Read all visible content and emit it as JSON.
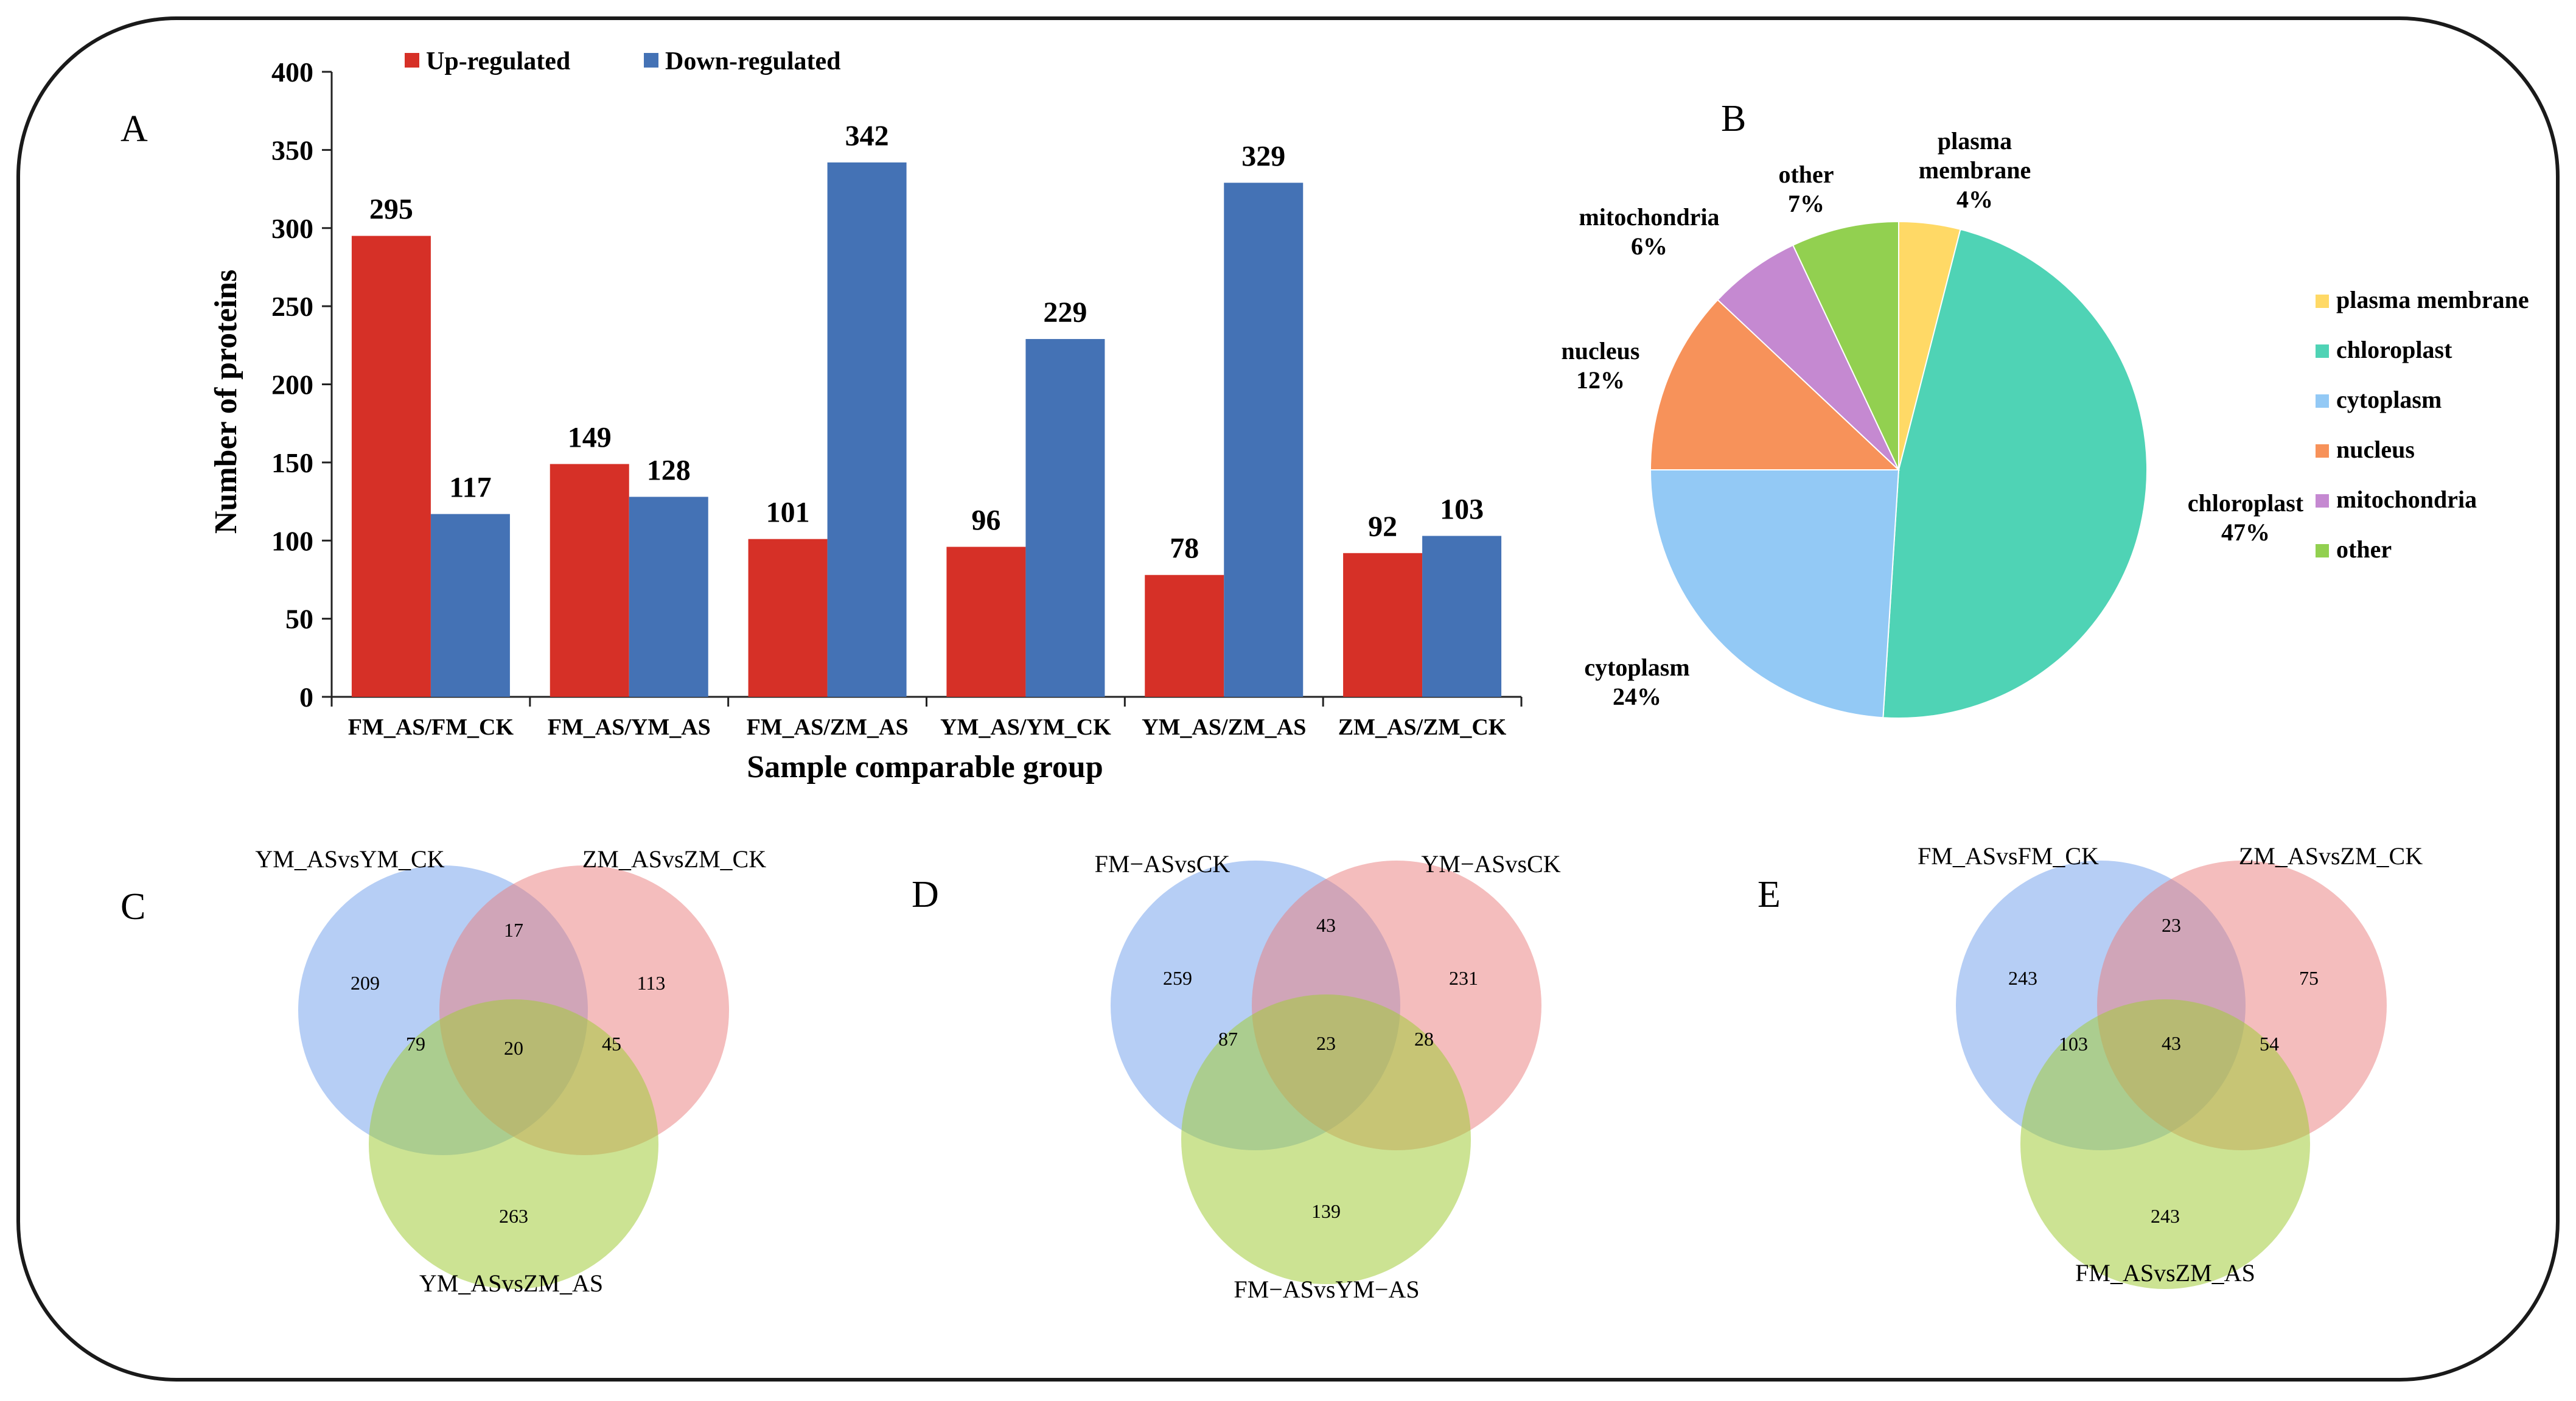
{
  "figure": {
    "panel_labels": {
      "a": "A",
      "b": "B",
      "c": "C",
      "d": "D",
      "e": "E"
    }
  },
  "chart_data": [
    {
      "id": "A",
      "type": "bar",
      "title": "",
      "xlabel": "Sample comparable group",
      "ylabel": "Number of proteins",
      "ylim": [
        0,
        400
      ],
      "yticks": [
        0,
        50,
        100,
        150,
        200,
        250,
        300,
        350,
        400
      ],
      "categories": [
        "FM_AS/FM_CK",
        "FM_AS/YM_AS",
        "FM_AS/ZM_AS",
        "YM_AS/YM_CK",
        "YM_AS/ZM_AS",
        "ZM_AS/ZM_CK"
      ],
      "series": [
        {
          "name": "Up-regulated",
          "color": "#d63027",
          "values": [
            295,
            149,
            101,
            96,
            78,
            92
          ]
        },
        {
          "name": "Down-regulated",
          "color": "#4472b5",
          "values": [
            117,
            128,
            342,
            229,
            329,
            103
          ]
        }
      ],
      "legend_position": "top"
    },
    {
      "id": "B",
      "type": "pie",
      "slices": [
        {
          "name": "plasma membrane",
          "label_lines": [
            "plasma",
            "membrane"
          ],
          "value": 4,
          "pct": "4%",
          "color": "#ffd966"
        },
        {
          "name": "chloroplast",
          "label_lines": [
            "chloroplast"
          ],
          "value": 47,
          "pct": "47%",
          "color": "#4fd3b5"
        },
        {
          "name": "cytoplasm",
          "label_lines": [
            "cytoplasm"
          ],
          "value": 24,
          "pct": "24%",
          "color": "#93c9f5"
        },
        {
          "name": "nucleus",
          "label_lines": [
            "nucleus"
          ],
          "value": 12,
          "pct": "12%",
          "color": "#f7925a"
        },
        {
          "name": "mitochondria",
          "label_lines": [
            "mitochondria"
          ],
          "value": 6,
          "pct": "6%",
          "color": "#c589d1"
        },
        {
          "name": "other",
          "label_lines": [
            "other"
          ],
          "value": 7,
          "pct": "7%",
          "color": "#92d050"
        }
      ],
      "legend": [
        "plasma membrane",
        "chloroplast",
        "cytoplasm",
        "nucleus",
        "mitochondria",
        "other"
      ],
      "legend_position": "right"
    },
    {
      "id": "C",
      "type": "venn",
      "sets": [
        "YM_ASvsYM_CK",
        "ZM_ASvsZM_CK",
        "YM_ASvsZM_AS"
      ],
      "regions": {
        "a_only": 209,
        "b_only": 113,
        "c_only": 263,
        "ab": 17,
        "ac": 79,
        "bc": 45,
        "abc": 20
      }
    },
    {
      "id": "D",
      "type": "venn",
      "sets": [
        "FM−ASvsCK",
        "YM−ASvsCK",
        "FM−ASvsYM−AS"
      ],
      "regions": {
        "a_only": 259,
        "b_only": 231,
        "c_only": 139,
        "ab": 43,
        "ac": 87,
        "bc": 28,
        "abc": 23
      }
    },
    {
      "id": "E",
      "type": "venn",
      "sets": [
        "FM_ASvsFM_CK",
        "ZM_ASvsZM_CK",
        "FM_ASvsZM_AS"
      ],
      "regions": {
        "a_only": 243,
        "b_only": 75,
        "c_only": 243,
        "ab": 23,
        "ac": 103,
        "bc": 54,
        "abc": 43
      }
    }
  ]
}
